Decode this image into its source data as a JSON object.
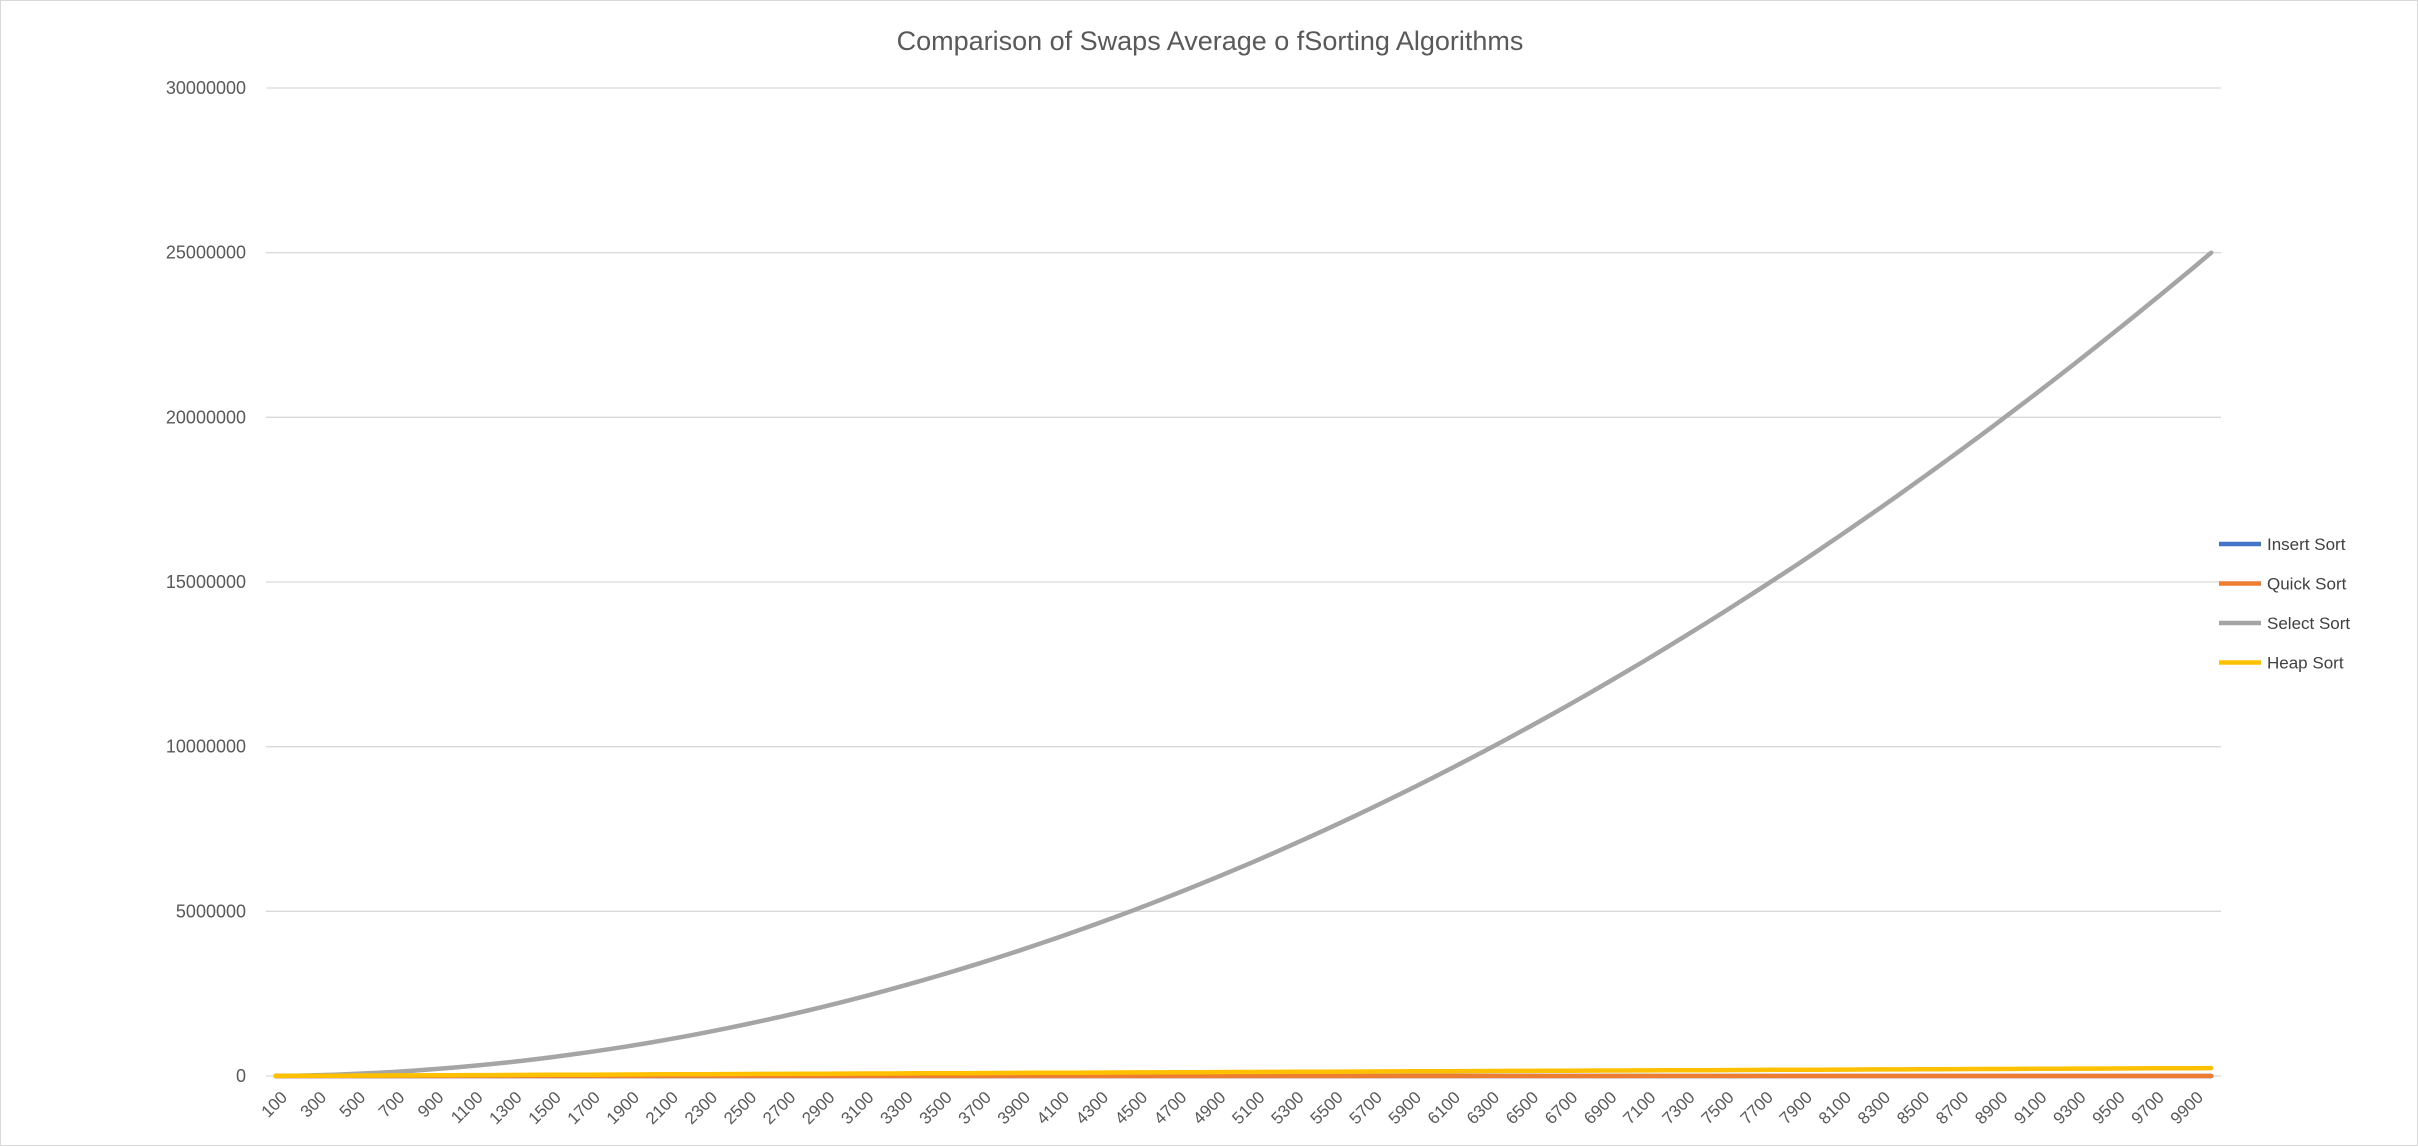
{
  "chart_data": {
    "type": "line",
    "title": "Comparison of Swaps Average o fSorting Algorithms",
    "xlabel": "",
    "ylabel": "",
    "ylim": [
      0,
      30000000
    ],
    "yticks": [
      "0",
      "5000000",
      "10000000",
      "15000000",
      "20000000",
      "25000000",
      "30000000"
    ],
    "x_start": 100,
    "x_step": 100,
    "x_count": 100,
    "x_tick_labels": [
      "100",
      "300",
      "500",
      "700",
      "900",
      "1100",
      "1300",
      "1500",
      "1700",
      "1900",
      "2100",
      "2300",
      "2500",
      "2700",
      "2900",
      "3100",
      "3300",
      "3500",
      "3700",
      "3900",
      "4100",
      "4300",
      "4500",
      "4700",
      "4900",
      "5100",
      "5300",
      "5500",
      "5700",
      "5900",
      "6100",
      "6300",
      "6500",
      "6700",
      "6900",
      "7100",
      "7300",
      "7500",
      "7700",
      "7900",
      "8100",
      "8300",
      "8500",
      "8700",
      "8900",
      "9100",
      "9300",
      "9500",
      "9700",
      "9900"
    ],
    "grid": true,
    "legend_position": "right",
    "series": [
      {
        "name": "Insert Sort",
        "color": "#4472C4",
        "model": "zero"
      },
      {
        "name": "Quick Sort",
        "color": "#ED7D31",
        "model": "zero"
      },
      {
        "name": "Select Sort",
        "color": "#A5A5A5",
        "model": "quadratic",
        "value_at_10000": 25000000
      },
      {
        "name": "Heap Sort",
        "color": "#FFC000",
        "model": "linear",
        "value_at_10000": 240000
      }
    ]
  }
}
